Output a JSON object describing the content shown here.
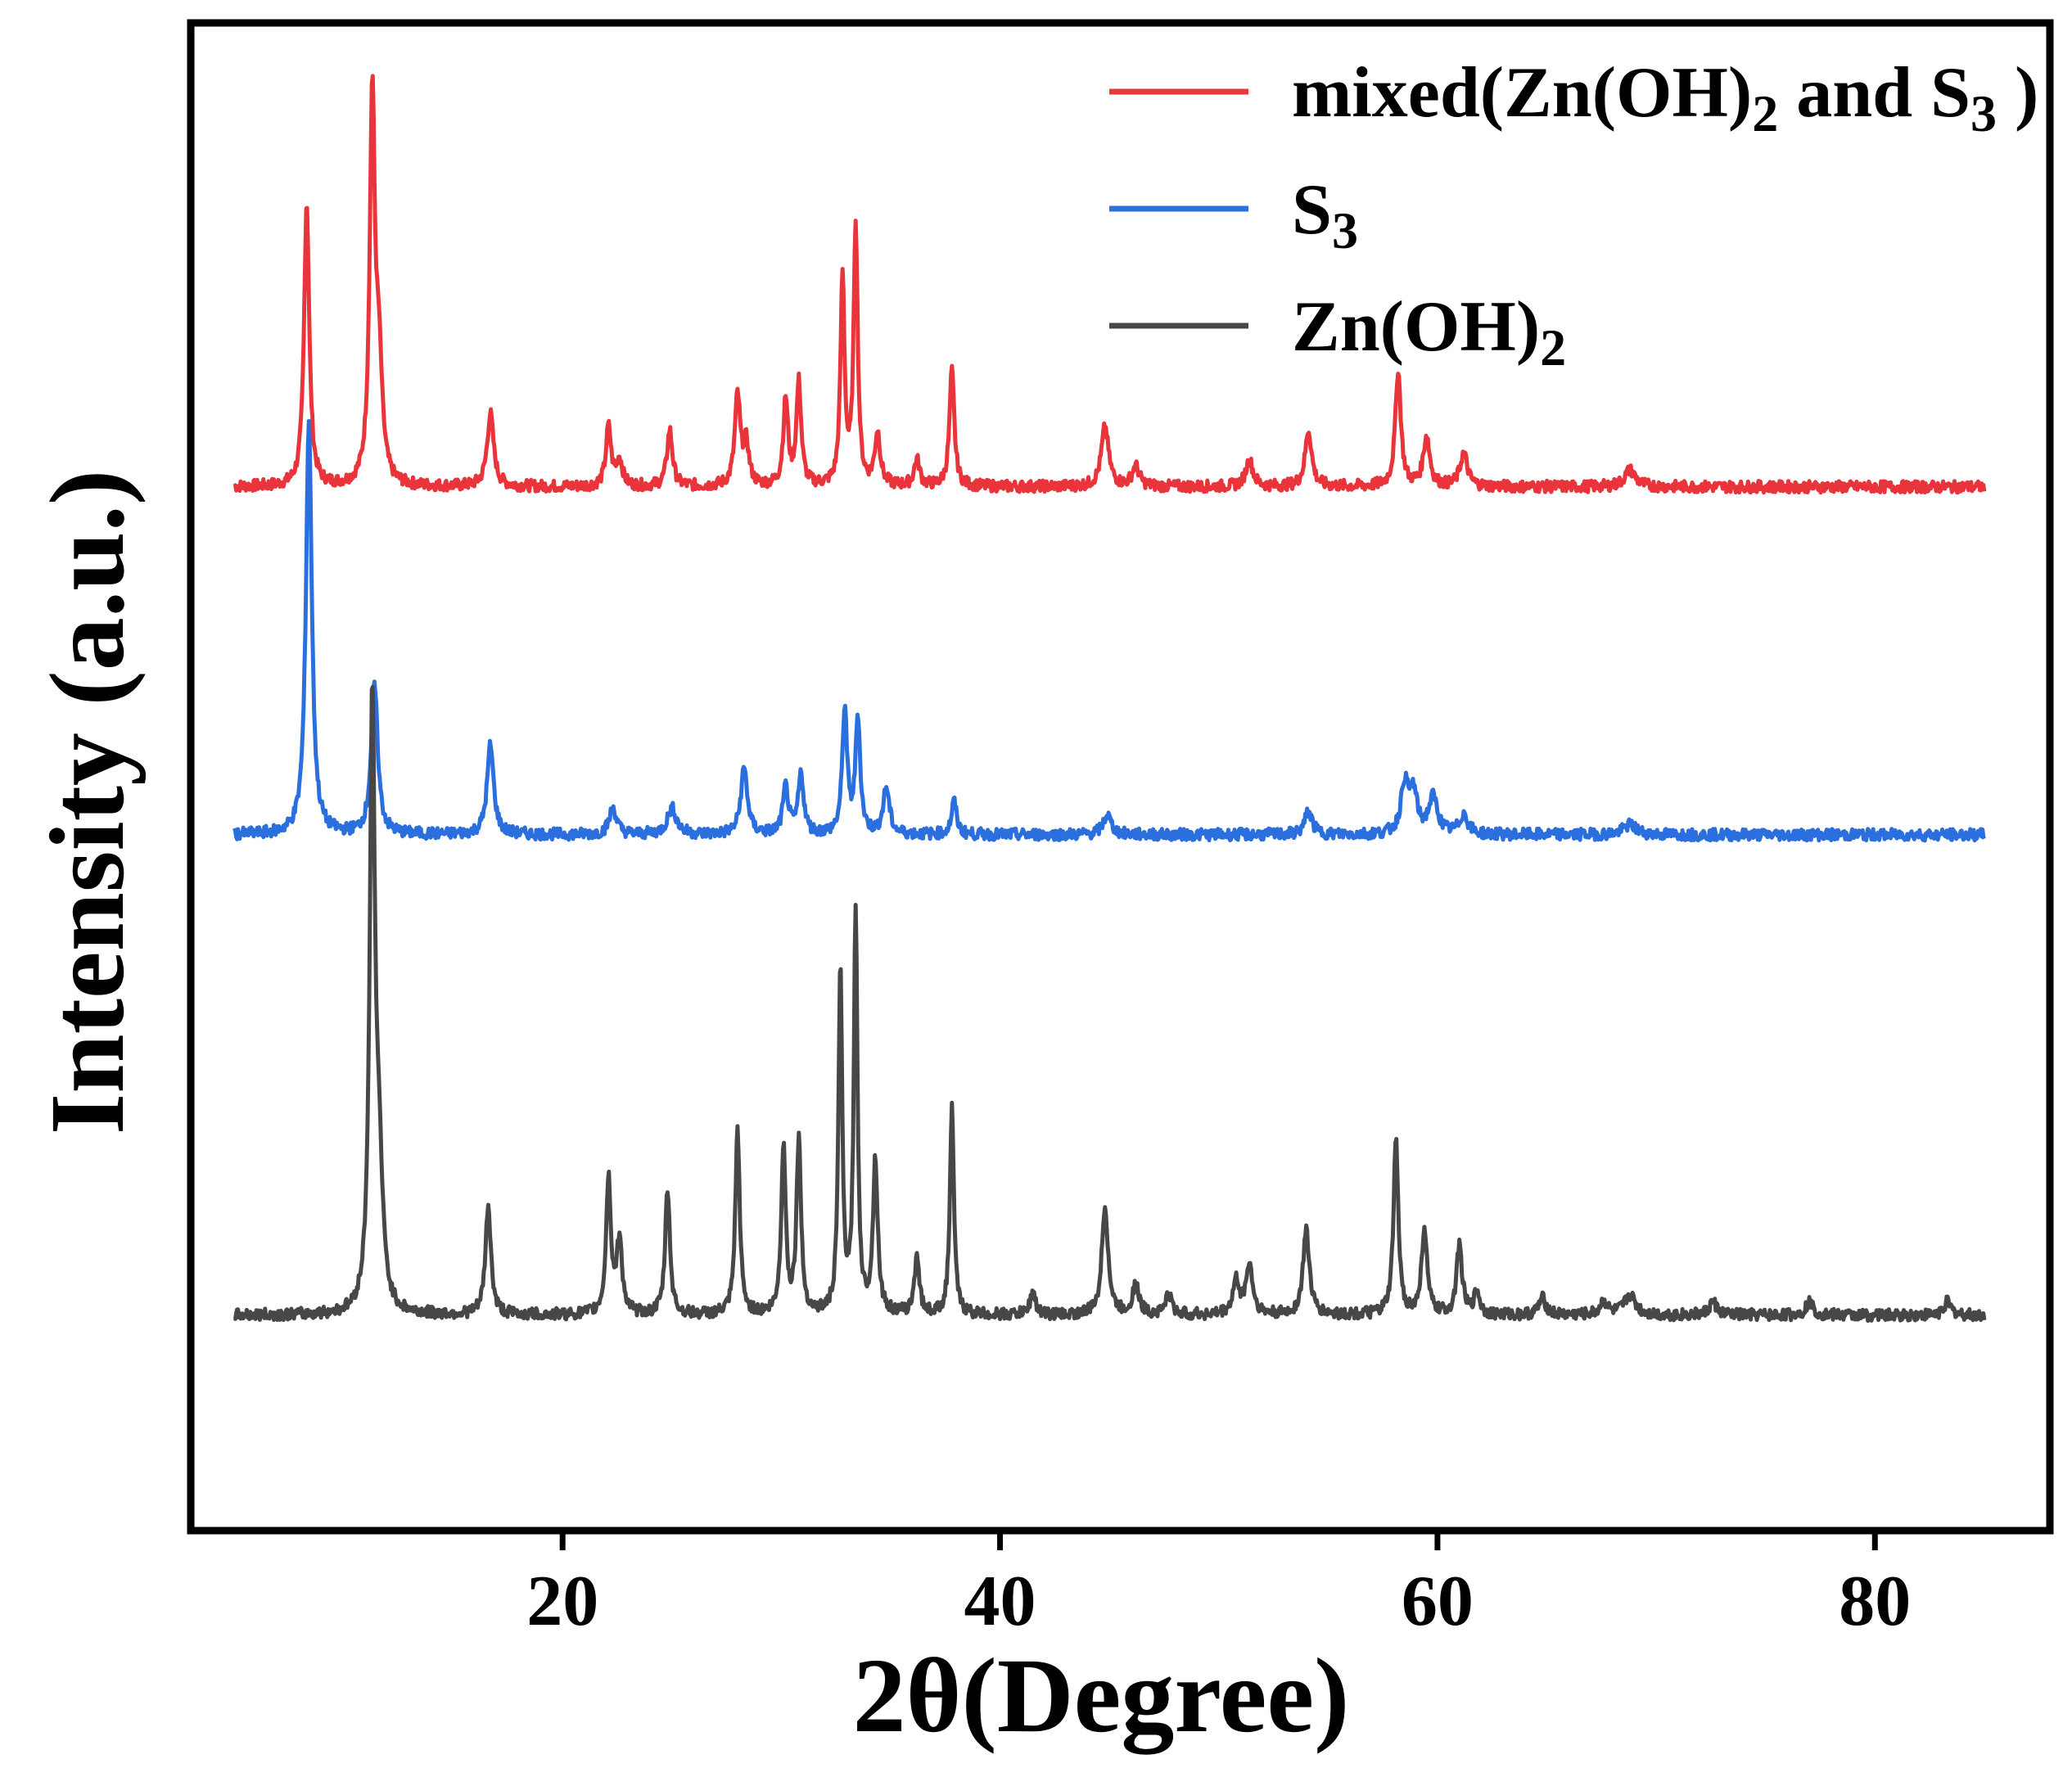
{
  "chart_data": {
    "type": "line",
    "xlabel": "2θ(Degree)",
    "ylabel": "Intensity (a.u.)",
    "xlim": [
      3,
      88
    ],
    "x_ticks": [
      20,
      40,
      60,
      80
    ],
    "x_tick_labels": [
      "20",
      "40",
      "60",
      "80"
    ],
    "y_ticks_shown": false,
    "grid": false,
    "legend_position": "top-right",
    "x_range": [
      5,
      85
    ],
    "series": [
      {
        "key": "mixed",
        "name_parts": [
          "mixed(Zn(OH)",
          "2",
          " and S",
          "3",
          " )"
        ],
        "color": "#e8343a",
        "baseline": 1.95,
        "peaks": [
          [
            8.3,
            0.86,
            0.14
          ],
          [
            11.3,
            1.16,
            0.14
          ],
          [
            11.6,
            0.34,
            0.18
          ],
          [
            16.7,
            0.22,
            0.18
          ],
          [
            22.1,
            0.18,
            0.14
          ],
          [
            22.6,
            0.08,
            0.16
          ],
          [
            24.9,
            0.17,
            0.15
          ],
          [
            28.0,
            0.27,
            0.15
          ],
          [
            28.4,
            0.12,
            0.15
          ],
          [
            30.2,
            0.26,
            0.13
          ],
          [
            30.8,
            0.31,
            0.13
          ],
          [
            32.8,
            0.63,
            0.11
          ],
          [
            33.4,
            0.79,
            0.11
          ],
          [
            34.4,
            0.16,
            0.15
          ],
          [
            36.2,
            0.08,
            0.15
          ],
          [
            37.8,
            0.35,
            0.13
          ],
          [
            44.8,
            0.18,
            0.2
          ],
          [
            46.2,
            0.06,
            0.2
          ],
          [
            51.4,
            0.08,
            0.2
          ],
          [
            54.1,
            0.17,
            0.18
          ],
          [
            58.2,
            0.35,
            0.15
          ],
          [
            59.5,
            0.15,
            0.18
          ],
          [
            61.2,
            0.1,
            0.2
          ],
          [
            68.8,
            0.05,
            0.3
          ]
        ]
      },
      {
        "key": "s3",
        "name_parts": [
          "S",
          "3"
        ],
        "color": "#2a6fdd",
        "baseline": 0.9,
        "peaks": [
          [
            8.4,
            1.25,
            0.16
          ],
          [
            11.4,
            0.45,
            0.18
          ],
          [
            16.7,
            0.27,
            0.18
          ],
          [
            22.3,
            0.08,
            0.2
          ],
          [
            25.0,
            0.08,
            0.25
          ],
          [
            28.3,
            0.2,
            0.18
          ],
          [
            30.2,
            0.14,
            0.15
          ],
          [
            30.9,
            0.18,
            0.15
          ],
          [
            32.9,
            0.38,
            0.13
          ],
          [
            33.5,
            0.35,
            0.13
          ],
          [
            34.8,
            0.14,
            0.17
          ],
          [
            37.9,
            0.1,
            0.14
          ],
          [
            44.9,
            0.06,
            0.22
          ],
          [
            54.1,
            0.07,
            0.2
          ],
          [
            58.5,
            0.15,
            0.2
          ],
          [
            58.9,
            0.12,
            0.2
          ],
          [
            59.8,
            0.11,
            0.25
          ],
          [
            61.2,
            0.06,
            0.22
          ],
          [
            68.8,
            0.03,
            0.35
          ]
        ]
      },
      {
        "key": "zn",
        "name_parts": [
          "Zn(OH)",
          "2"
        ],
        "color": "#474747",
        "baseline": -0.55,
        "peaks": [
          [
            11.3,
            1.8,
            0.14
          ],
          [
            11.6,
            0.4,
            0.2
          ],
          [
            16.6,
            0.33,
            0.15
          ],
          [
            22.1,
            0.41,
            0.13
          ],
          [
            22.6,
            0.22,
            0.15
          ],
          [
            24.8,
            0.38,
            0.13
          ],
          [
            28.0,
            0.56,
            0.12
          ],
          [
            30.1,
            0.51,
            0.12
          ],
          [
            30.8,
            0.53,
            0.12
          ],
          [
            32.7,
            1.05,
            0.1
          ],
          [
            33.4,
            1.21,
            0.1
          ],
          [
            34.3,
            0.46,
            0.13
          ],
          [
            36.2,
            0.18,
            0.13
          ],
          [
            37.8,
            0.62,
            0.11
          ],
          [
            41.5,
            0.07,
            0.15
          ],
          [
            44.8,
            0.33,
            0.17
          ],
          [
            46.2,
            0.09,
            0.18
          ],
          [
            47.7,
            0.06,
            0.18
          ],
          [
            50.8,
            0.1,
            0.18
          ],
          [
            51.4,
            0.15,
            0.18
          ],
          [
            54.0,
            0.26,
            0.17
          ],
          [
            58.1,
            0.53,
            0.13
          ],
          [
            59.4,
            0.26,
            0.15
          ],
          [
            61.0,
            0.21,
            0.15
          ],
          [
            61.8,
            0.07,
            0.15
          ],
          [
            64.8,
            0.05,
            0.2
          ],
          [
            67.6,
            0.04,
            0.2
          ],
          [
            68.8,
            0.06,
            0.3
          ],
          [
            72.6,
            0.04,
            0.2
          ],
          [
            77.0,
            0.04,
            0.2
          ],
          [
            83.3,
            0.04,
            0.2
          ]
        ]
      }
    ]
  }
}
